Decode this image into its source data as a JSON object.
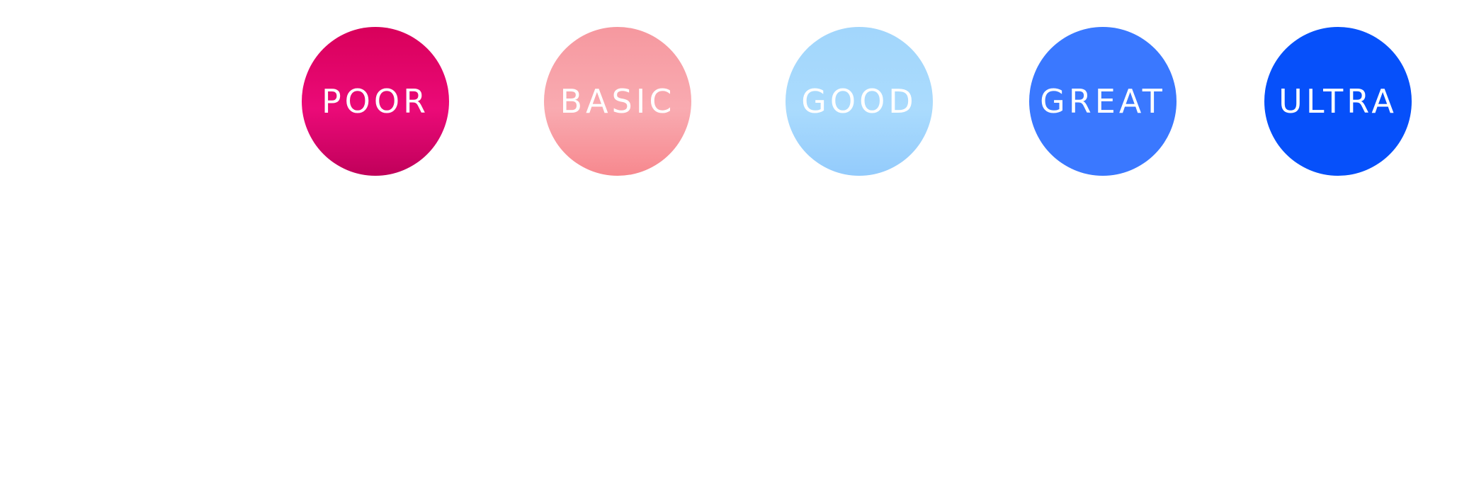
{
  "buttons": [
    {
      "label": "POOR"
    },
    {
      "label": "BASIC"
    },
    {
      "label": "GOOD"
    },
    {
      "label": "GREAT"
    },
    {
      "label": "ULTRA"
    }
  ]
}
